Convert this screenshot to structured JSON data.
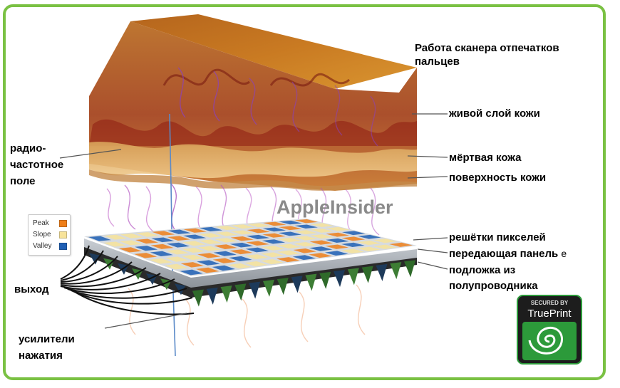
{
  "title": "Работа сканера отпечатков пальцев",
  "labels": {
    "radio_field": "радио-частотное поле",
    "live_layer": "живой слой кожи",
    "dead_skin": "мёртвая кожа",
    "skin_surface": "поверхность кожи",
    "pixel_grid": "решётки пикселей",
    "transmit_panel": "передающая панель",
    "transmit_panel_suffix": "e",
    "substrate": "подложка из полупроводника",
    "output": "выход",
    "amplifiers": "усилители нажатия"
  },
  "legend": [
    {
      "label": "Peak",
      "color": "#ef7f1a"
    },
    {
      "label": "Slope",
      "color": "#f7e39a"
    },
    {
      "label": "Valley",
      "color": "#1f5fb4"
    }
  ],
  "watermark": "AppleInsider",
  "badge": {
    "top": "SECURED BY",
    "brand": "TruePrint"
  },
  "colors": {
    "frame": "#7ac143",
    "badge_green": "#2c9a3a"
  }
}
